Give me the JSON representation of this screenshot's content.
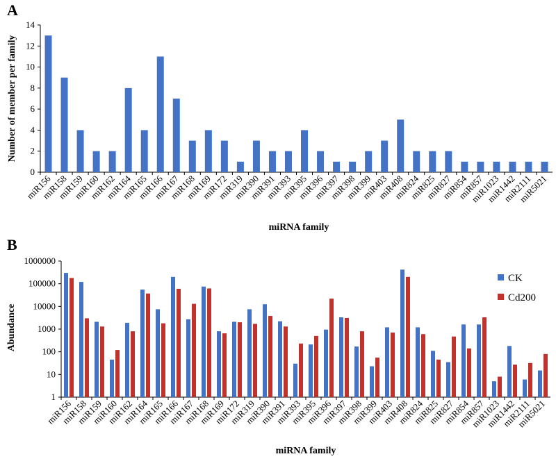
{
  "chart_data": [
    {
      "type": "bar",
      "panel_label": "A",
      "title": "",
      "xlabel": "miRNA family",
      "ylabel": "Number of member per family",
      "ylim": [
        0,
        14
      ],
      "yticks": [
        0,
        2,
        4,
        6,
        8,
        10,
        12,
        14
      ],
      "grid": false,
      "color": "#4472C4",
      "categories": [
        "miR156",
        "miR158",
        "miR159",
        "miR160",
        "miR162",
        "miR164",
        "miR165",
        "miR166",
        "miR167",
        "miR168",
        "miR169",
        "miR172",
        "miR319",
        "miR390",
        "miR391",
        "miR393",
        "miR395",
        "miR396",
        "miR397",
        "miR398",
        "miR399",
        "miR403",
        "miR408",
        "miR824",
        "miR825",
        "miR827",
        "miR854",
        "miR857",
        "miR1023",
        "miR1442",
        "miR2111",
        "miR5021"
      ],
      "values": [
        13,
        9,
        4,
        2,
        2,
        8,
        4,
        11,
        7,
        3,
        4,
        3,
        1,
        3,
        2,
        2,
        4,
        2,
        1,
        1,
        2,
        3,
        5,
        2,
        2,
        2,
        1,
        1,
        1,
        1,
        1,
        1
      ]
    },
    {
      "type": "bar",
      "panel_label": "B",
      "title": "",
      "xlabel": "miRNA family",
      "ylabel": "Abundance",
      "yscale": "log",
      "ylim": [
        1,
        1000000
      ],
      "yticks": [
        "1",
        "10",
        "100",
        "1000",
        "10000",
        "100000",
        "1000000"
      ],
      "grid": false,
      "legend": "top-right",
      "categories": [
        "miR156",
        "miR158",
        "miR159",
        "miR160",
        "miR162",
        "miR164",
        "miR165",
        "miR166",
        "miR167",
        "miR168",
        "miR169",
        "miR172",
        "miR319",
        "miR390",
        "miR391",
        "miR393",
        "miR395",
        "miR396",
        "miR397",
        "miR398",
        "miR399",
        "miR403",
        "miR408",
        "miR824",
        "miR825",
        "miR827",
        "miR854",
        "miR857",
        "miR1023",
        "miR1442",
        "miR2111",
        "miR5021"
      ],
      "series": [
        {
          "name": "CK",
          "color": "#4472C4",
          "values": [
            300000,
            120000,
            2100,
            45,
            1900,
            55000,
            7500,
            200000,
            2700,
            75000,
            800,
            2100,
            7500,
            12500,
            2200,
            30,
            210,
            950,
            3300,
            170,
            23,
            1200,
            420000,
            1200,
            110,
            35,
            1600,
            1600,
            5,
            180,
            6,
            15
          ]
        },
        {
          "name": "Cd200",
          "color": "#C0322D",
          "values": [
            180000,
            3000,
            1300,
            120,
            800,
            37000,
            1800,
            60000,
            13000,
            62000,
            650,
            2000,
            1700,
            3800,
            1300,
            230,
            500,
            22000,
            3100,
            800,
            55,
            700,
            200000,
            600,
            45,
            470,
            140,
            3300,
            8,
            27,
            32,
            80
          ]
        }
      ]
    }
  ]
}
